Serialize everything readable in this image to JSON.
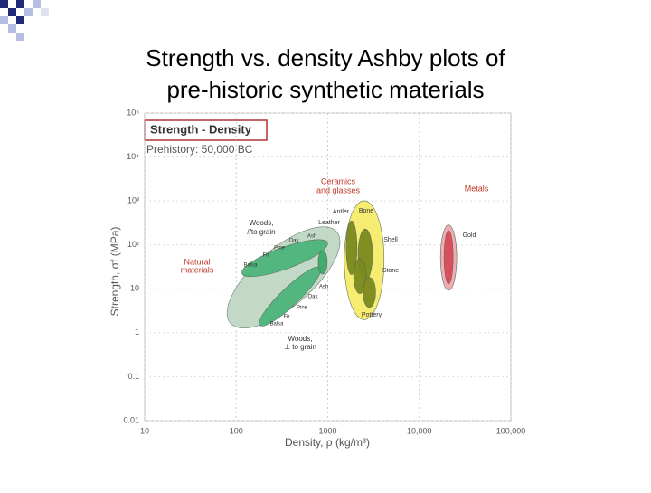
{
  "slide_title": [
    "Strength vs. density Ashby plots of",
    "pre-historic synthetic materials"
  ],
  "chart_data": {
    "type": "region",
    "heading": "Strength - Density",
    "subtitle": "Prehistory: 50,000 BC",
    "x_label": "Density, ρ (kg/m³)",
    "y_label": "Strength, σf (MPa)",
    "log_scale": true,
    "grid": true,
    "xlim": [
      10,
      100000
    ],
    "ylim": [
      0.01,
      100000
    ],
    "xticks": [
      10,
      100,
      1000,
      {
        "value": 10000,
        "label": "10,000"
      },
      {
        "value": 100000,
        "label": "100,000"
      }
    ],
    "yticks": [
      0.01,
      0.1,
      1,
      10,
      {
        "value": 100,
        "label": "10²"
      },
      {
        "value": 1000,
        "label": "10³"
      },
      {
        "value": 10000,
        "label": "10⁴"
      },
      {
        "value": 100000,
        "label": "10⁵"
      }
    ],
    "regions": [
      {
        "color": "#b9d3be",
        "x": [
          120,
          900
        ],
        "y": [
          3,
          110
        ]
      },
      {
        "color": "#4fb57c",
        "x": [
          135,
          850
        ],
        "y": [
          25,
          100
        ]
      },
      {
        "color": "#4fb57c",
        "x": [
          200,
          750
        ],
        "y": [
          1.8,
          25
        ]
      },
      {
        "color": "#3fa86a",
        "x": [
          880,
          880
        ],
        "y": [
          25,
          65
        ]
      },
      {
        "color": "#f5ec6a",
        "x": [
          2500,
          2500
        ],
        "y": [
          3.7,
          540
        ]
      },
      {
        "color": "#7a8a1e",
        "x": [
          1820,
          1820
        ],
        "y": [
          25,
          295
        ]
      },
      {
        "color": "#7a8a1e",
        "x": [
          2570,
          2570
        ],
        "y": [
          19.7,
          183
        ]
      },
      {
        "color": "#7a8a1e",
        "x": [
          2250,
          2250
        ],
        "y": [
          9.5,
          40
        ]
      },
      {
        "color": "#7a8a1e",
        "x": [
          2840,
          2840
        ],
        "y": [
          4.6,
          15
        ]
      },
      {
        "color": "#f0a8b0",
        "x": [
          20900,
          20900
        ],
        "y": [
          12,
          220
        ]
      },
      {
        "color": "#d94a5a",
        "x": [
          20900,
          20900
        ],
        "y": [
          15,
          183
        ]
      }
    ],
    "labels": [
      "Ceramics",
      "and glasses",
      "Metals",
      "Natural",
      "materials",
      "Woods,",
      "//to grain",
      "Woods,",
      "⊥ to grain",
      "Antler",
      "Bone",
      "Leather",
      "Shell",
      "Stone",
      "Pottery",
      "Gold",
      "Ash",
      "Oak",
      "Pine",
      "Fir",
      "Balsa",
      "Ash",
      "Oak",
      "Pine",
      "Fir",
      "Balsa"
    ]
  }
}
